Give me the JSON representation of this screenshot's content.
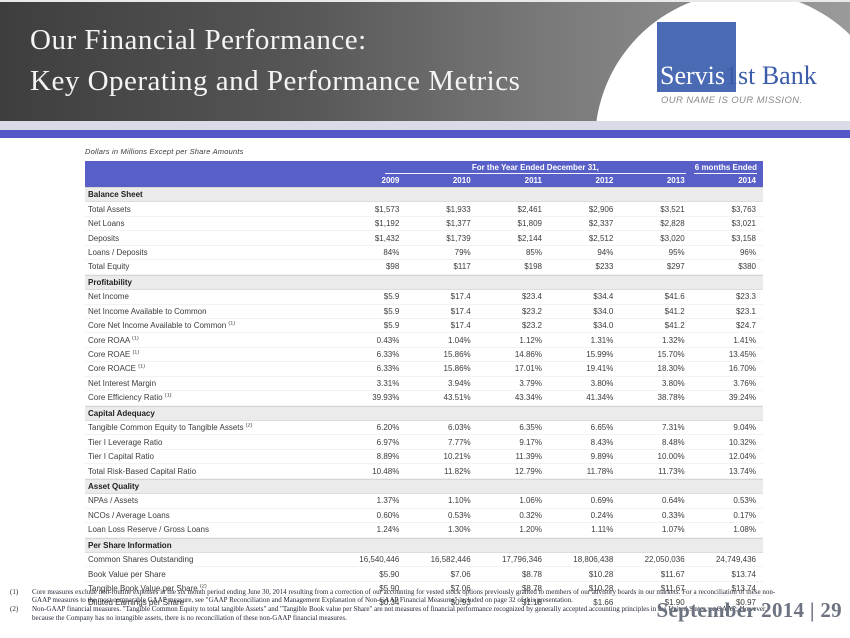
{
  "header": {
    "title_line1": "Our Financial Performance:",
    "title_line2": "Key Operating and Performance Metrics",
    "logo": {
      "name_part1": "Servis",
      "name_part2": "1st Bank",
      "tagline": "OUR NAME IS OUR MISSION.",
      "square_color": "#4a6ab4",
      "text_color": "#3b5ca8"
    },
    "banner_colors": {
      "gradient_start": "#3e3e3e",
      "gradient_end": "#9a9a9a",
      "rule": "#5557c9"
    }
  },
  "table": {
    "units_note": "Dollars in Millions Except per Share Amounts",
    "header_bg": "#5860c8",
    "col_group_label": "For the Year Ended December 31,",
    "col_group2_label": "6 months Ended",
    "years": [
      "2009",
      "2010",
      "2011",
      "2012",
      "2013"
    ],
    "period2": "2014",
    "sections": [
      {
        "title": "Balance Sheet",
        "rows": [
          {
            "label": "Total Assets",
            "values": [
              "$1,573",
              "$1,933",
              "$2,461",
              "$2,906",
              "$3,521",
              "$3,763"
            ]
          },
          {
            "label": "Net Loans",
            "values": [
              "$1,192",
              "$1,377",
              "$1,809",
              "$2,337",
              "$2,828",
              "$3,021"
            ]
          },
          {
            "label": "Deposits",
            "values": [
              "$1,432",
              "$1,739",
              "$2,144",
              "$2,512",
              "$3,020",
              "$3,158"
            ]
          },
          {
            "label": "Loans / Deposits",
            "values": [
              "84%",
              "79%",
              "85%",
              "94%",
              "95%",
              "96%"
            ]
          },
          {
            "label": "Total Equity",
            "values": [
              "$98",
              "$117",
              "$198",
              "$233",
              "$297",
              "$380"
            ]
          }
        ]
      },
      {
        "title": "Profitability",
        "rows": [
          {
            "label": "Net Income",
            "values": [
              "$5.9",
              "$17.4",
              "$23.4",
              "$34.4",
              "$41.6",
              "$23.3"
            ]
          },
          {
            "label": "Net Income Available to Common",
            "values": [
              "$5.9",
              "$17.4",
              "$23.2",
              "$34.0",
              "$41.2",
              "$23.1"
            ]
          },
          {
            "label": "Core Net Income Available to Common",
            "sup": "(1)",
            "values": [
              "$5.9",
              "$17.4",
              "$23.2",
              "$34.0",
              "$41.2",
              "$24.7"
            ]
          },
          {
            "label": "Core ROAA",
            "sup": "(1)",
            "values": [
              "0.43%",
              "1.04%",
              "1.12%",
              "1.31%",
              "1.32%",
              "1.41%"
            ]
          },
          {
            "label": "Core ROAE",
            "sup": "(1)",
            "values": [
              "6.33%",
              "15.86%",
              "14.86%",
              "15.99%",
              "15.70%",
              "13.45%"
            ]
          },
          {
            "label": "Core ROACE",
            "sup": "(1)",
            "values": [
              "6.33%",
              "15.86%",
              "17.01%",
              "19.41%",
              "18.30%",
              "16.70%"
            ]
          },
          {
            "label": "Net Interest Margin",
            "values": [
              "3.31%",
              "3.94%",
              "3.79%",
              "3.80%",
              "3.80%",
              "3.76%"
            ]
          },
          {
            "label": "Core Efficiency Ratio",
            "sup": "(1)",
            "values": [
              "39.93%",
              "43.51%",
              "43.34%",
              "41.34%",
              "38.78%",
              "39.24%"
            ]
          }
        ]
      },
      {
        "title": "Capital Adequacy",
        "rows": [
          {
            "label": "Tangible Common Equity to Tangible Assets",
            "sup": "(2)",
            "values": [
              "6.20%",
              "6.03%",
              "6.35%",
              "6.65%",
              "7.31%",
              "9.04%"
            ]
          },
          {
            "label": "Tier I Leverage Ratio",
            "values": [
              "6.97%",
              "7.77%",
              "9.17%",
              "8.43%",
              "8.48%",
              "10.32%"
            ]
          },
          {
            "label": "Tier I Capital Ratio",
            "values": [
              "8.89%",
              "10.21%",
              "11.39%",
              "9.89%",
              "10.00%",
              "12.04%"
            ]
          },
          {
            "label": "Total Risk-Based Capital Ratio",
            "values": [
              "10.48%",
              "11.82%",
              "12.79%",
              "11.78%",
              "11.73%",
              "13.74%"
            ]
          }
        ]
      },
      {
        "title": "Asset Quality",
        "rows": [
          {
            "label": "NPAs / Assets",
            "values": [
              "1.37%",
              "1.10%",
              "1.06%",
              "0.69%",
              "0.64%",
              "0.53%"
            ]
          },
          {
            "label": "NCOs / Average Loans",
            "values": [
              "0.60%",
              "0.53%",
              "0.32%",
              "0.24%",
              "0.33%",
              "0.17%"
            ]
          },
          {
            "label": "Loan Loss Reserve / Gross Loans",
            "values": [
              "1.24%",
              "1.30%",
              "1.20%",
              "1.11%",
              "1.07%",
              "1.08%"
            ]
          }
        ]
      },
      {
        "title": "Per Share Information",
        "rows": [
          {
            "label": "Common Shares Outstanding",
            "values": [
              "16,540,446",
              "16,582,446",
              "17,796,346",
              "18,806,438",
              "22,050,036",
              "24,749,436"
            ]
          },
          {
            "label": "Book Value per Share",
            "values": [
              "$5.90",
              "$7.06",
              "$8.78",
              "$10.28",
              "$11.67",
              "$13.74"
            ]
          },
          {
            "label": "Tangible Book Value per Share",
            "sup": "(2)",
            "values": [
              "$5.90",
              "$7.06",
              "$8.78",
              "$10.28",
              "$11.67",
              "$13.74"
            ]
          },
          {
            "label": "Diluted Earnings per Share",
            "values": [
              "$0.34",
              "$0.93",
              "$1.18",
              "$1.66",
              "$1.90",
              "$0.97"
            ]
          }
        ]
      }
    ]
  },
  "footnotes": [
    {
      "marker": "(1)",
      "text": "Core measures exclude non-routine expenses in the six month period ending June 30, 2014 resulting from a correction of our accounting for vested stock options previously granted to members of our advisory boards in our markets. For a reconciliation of these non-GAAP measures to the most comparable GAAP measure, see \"GAAP Reconciliation and Management Explanation of Non-GAAP Financial Measures\" included on page 32 of this presentation."
    },
    {
      "marker": "(2)",
      "text": "Non-GAAP financial measures. \"Tangible Common Equity to total tangible Assets\" and \"Tangible Book value per Share\" are not measures of financial performance recognized by generally accepted accounting principles in the United States, or GAAP;  However, because the Company has no intangible assets, there is no reconciliation of these non-GAAP financial measures."
    }
  ],
  "footer": {
    "text": "September 2014 | 29"
  }
}
